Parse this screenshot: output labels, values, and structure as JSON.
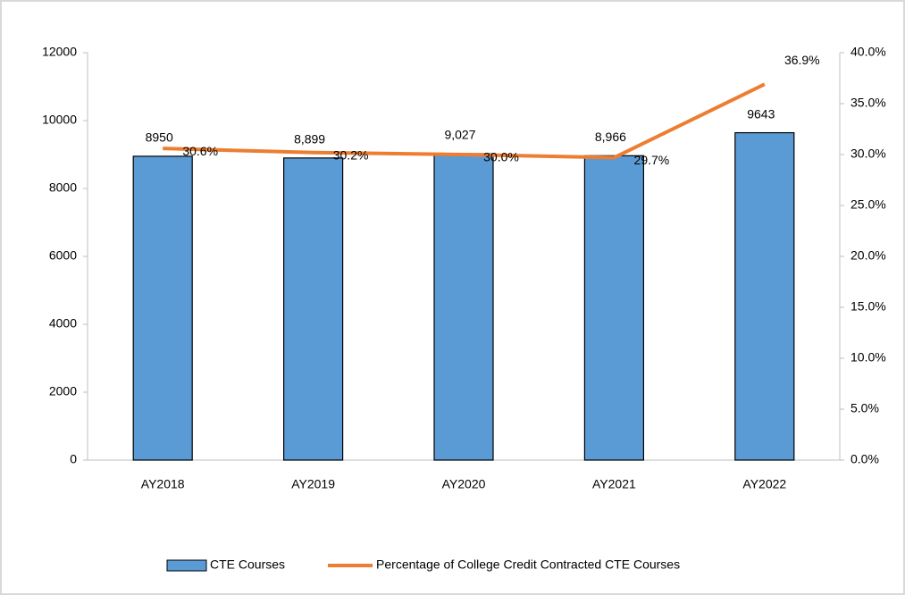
{
  "chart_data": {
    "type": "bar",
    "categories": [
      "AY2018",
      "AY2019",
      "AY2020",
      "AY2021",
      "AY2022"
    ],
    "series": [
      {
        "name": "CTE Courses",
        "type": "bar",
        "color": "#5b9bd5",
        "values": [
          8950,
          8899,
          9027,
          8966,
          9643
        ],
        "value_labels": [
          "8950",
          "8,899",
          "9,027",
          "8,966",
          "9643"
        ]
      },
      {
        "name": "Percentage of College Credit Contracted CTE Courses",
        "type": "line",
        "axis": "y2",
        "color": "#ed7d31",
        "values": [
          30.6,
          30.2,
          30.0,
          29.7,
          36.9
        ],
        "value_labels": [
          "30.6%",
          "30.2%",
          "30.0%",
          "29.7%",
          "36.9%"
        ]
      }
    ],
    "ylim": [
      0,
      12000
    ],
    "yticks": [
      0,
      2000,
      4000,
      6000,
      8000,
      10000,
      12000
    ],
    "y2lim": [
      0,
      40
    ],
    "y2ticks": [
      {
        "value": 0,
        "label": "0.0%"
      },
      {
        "value": 5,
        "label": "5.0%"
      },
      {
        "value": 10,
        "label": "10.0%"
      },
      {
        "value": 15,
        "label": "15.0%"
      },
      {
        "value": 20,
        "label": "20.0%"
      },
      {
        "value": 25,
        "label": "25.0%"
      },
      {
        "value": 30,
        "label": "30.0%"
      },
      {
        "value": 35,
        "label": "35.0%"
      },
      {
        "value": 40,
        "label": "40.0%"
      }
    ],
    "legend": "bottom"
  }
}
